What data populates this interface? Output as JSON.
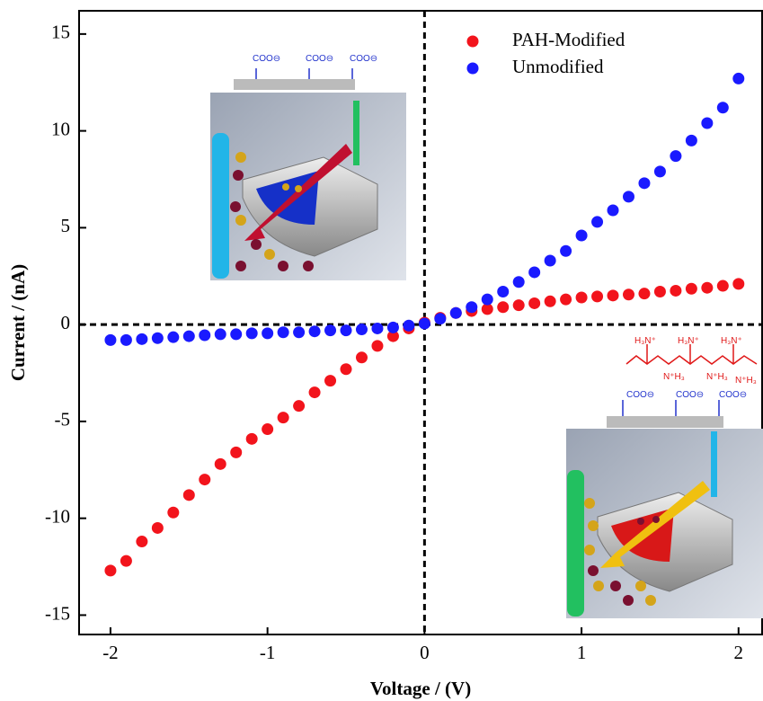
{
  "chart_data": {
    "type": "scatter",
    "xlabel": "Voltage / (V)",
    "ylabel": "Current / (nA)",
    "x": [
      -2,
      -1.9,
      -1.8,
      -1.7,
      -1.6,
      -1.5,
      -1.4,
      -1.3,
      -1.2,
      -1.1,
      -1,
      -0.9,
      -0.8,
      -0.7,
      -0.6,
      -0.5,
      -0.4,
      -0.3,
      -0.2,
      -0.1,
      0,
      0.1,
      0.2,
      0.3,
      0.4,
      0.5,
      0.6,
      0.7,
      0.8,
      0.9,
      1,
      1.1,
      1.2,
      1.3,
      1.4,
      1.5,
      1.6,
      1.7,
      1.8,
      1.9,
      2
    ],
    "series": [
      {
        "name": "PAH-Modified",
        "color": "#f2141c",
        "values": [
          -12.7,
          -12.2,
          -11.2,
          -10.5,
          -9.7,
          -8.8,
          -8.0,
          -7.2,
          -6.6,
          -5.9,
          -5.4,
          -4.8,
          -4.2,
          -3.5,
          -2.9,
          -2.3,
          -1.7,
          -1.1,
          -0.6,
          -0.2,
          0.1,
          0.35,
          0.6,
          0.7,
          0.8,
          0.9,
          1.0,
          1.1,
          1.2,
          1.3,
          1.4,
          1.45,
          1.5,
          1.55,
          1.6,
          1.7,
          1.75,
          1.85,
          1.9,
          2.0,
          2.1
        ]
      },
      {
        "name": "Unmodified",
        "color": "#1a1aff",
        "values": [
          -0.8,
          -0.8,
          -0.75,
          -0.7,
          -0.65,
          -0.6,
          -0.55,
          -0.5,
          -0.5,
          -0.45,
          -0.45,
          -0.4,
          -0.4,
          -0.35,
          -0.3,
          -0.3,
          -0.25,
          -0.2,
          -0.15,
          -0.05,
          0.05,
          0.3,
          0.6,
          0.9,
          1.3,
          1.7,
          2.2,
          2.7,
          3.3,
          3.8,
          4.6,
          5.3,
          5.9,
          6.6,
          7.3,
          7.9,
          8.7,
          9.5,
          10.4,
          11.2,
          12.7
        ]
      }
    ],
    "xlim": [
      -2.2,
      2.15
    ],
    "ylim": [
      -16,
      16.2
    ],
    "xticks": [
      -2,
      -1,
      0,
      1,
      2
    ],
    "yticks": [
      -15,
      -10,
      -5,
      0,
      5,
      10,
      15
    ],
    "zero_lines": true,
    "legend": "upper center",
    "annotations": [
      "COO⊖",
      "COO⊖",
      "COO⊖",
      "H₃N⁺",
      "H₃N⁺",
      "H₃N⁺",
      "N⁺H₃",
      "N⁺H₃",
      "N⁺H₃",
      "COO⊖",
      "COO⊖",
      "COO⊖"
    ]
  }
}
